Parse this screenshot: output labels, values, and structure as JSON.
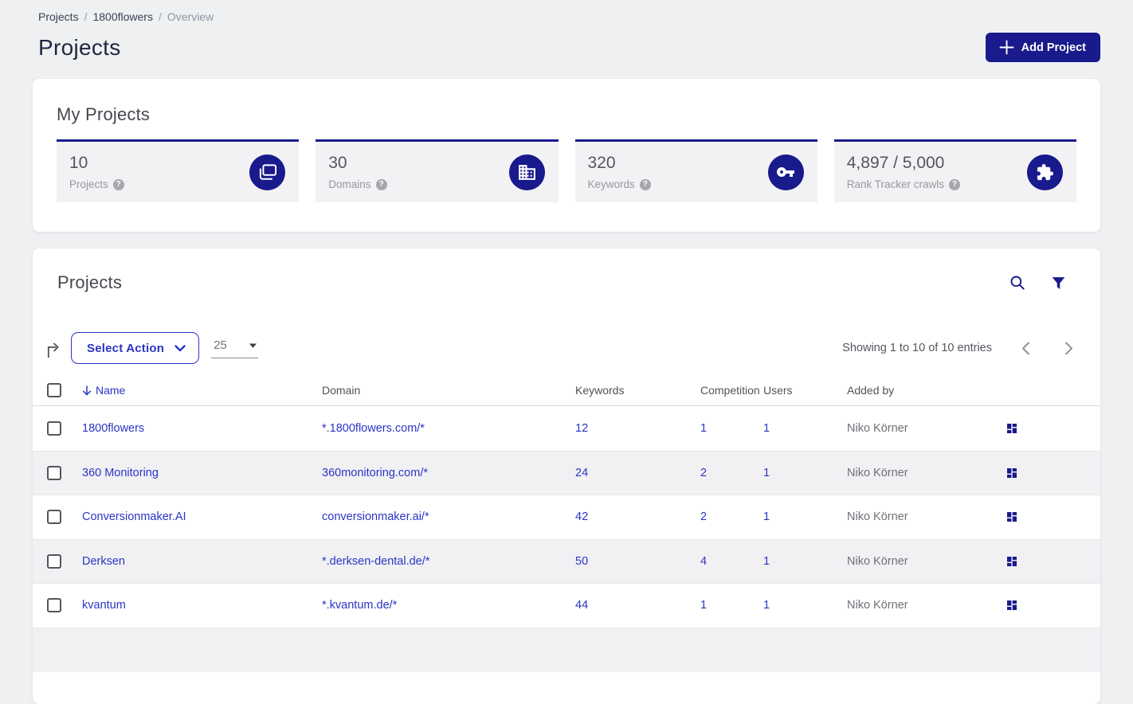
{
  "colors": {
    "accent": "#191a8c",
    "link": "#2a35c3"
  },
  "breadcrumb": {
    "items": [
      "Projects",
      "1800flowers",
      "Overview"
    ],
    "separator": "/"
  },
  "header": {
    "title": "Projects",
    "add_button_label": "Add Project"
  },
  "my_projects": {
    "title": "My Projects",
    "stats": [
      {
        "value": "10",
        "label": "Projects",
        "icon": "projects-stack-icon"
      },
      {
        "value": "30",
        "label": "Domains",
        "icon": "building-icon"
      },
      {
        "value": "320",
        "label": "Keywords",
        "icon": "key-icon"
      },
      {
        "value": "4,897 / 5,000",
        "label": "Rank Tracker crawls",
        "icon": "puzzle-icon"
      }
    ]
  },
  "projects_table": {
    "title": "Projects",
    "select_action_label": "Select Action",
    "page_size": "25",
    "showing_text": "Showing 1 to 10 of 10 entries",
    "columns": {
      "name": "Name",
      "domain": "Domain",
      "keywords": "Keywords",
      "competition": "Competition",
      "users": "Users",
      "added_by": "Added by"
    },
    "sorted_column": "Name",
    "rows": [
      {
        "name": "1800flowers",
        "domain": "*.1800flowers.com/*",
        "keywords": "12",
        "competition": "1",
        "users": "1",
        "added_by": "Niko Körner"
      },
      {
        "name": "360 Monitoring",
        "domain": "360monitoring.com/*",
        "keywords": "24",
        "competition": "2",
        "users": "1",
        "added_by": "Niko Körner"
      },
      {
        "name": "Conversionmaker.AI",
        "domain": "conversionmaker.ai/*",
        "keywords": "42",
        "competition": "2",
        "users": "1",
        "added_by": "Niko Körner"
      },
      {
        "name": "Derksen",
        "domain": "*.derksen-dental.de/*",
        "keywords": "50",
        "competition": "4",
        "users": "1",
        "added_by": "Niko Körner"
      },
      {
        "name": "kvantum",
        "domain": "*.kvantum.de/*",
        "keywords": "44",
        "competition": "1",
        "users": "1",
        "added_by": "Niko Körner"
      }
    ]
  }
}
